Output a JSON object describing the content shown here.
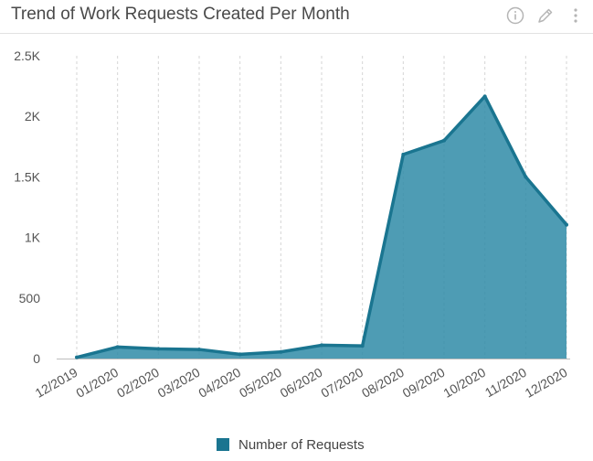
{
  "header": {
    "title": "Trend of Work Requests Created Per Month",
    "icons": [
      "info-icon",
      "pencil-icon",
      "more-vertical-icon"
    ]
  },
  "legend": {
    "label": "Number of Requests"
  },
  "colors": {
    "line": "#1a7590",
    "fill": "#2f8ba7",
    "grid": "#d6d6d6",
    "axis": "#bdbdbd"
  },
  "chart_data": {
    "type": "area",
    "title": "Trend of Work Requests Created Per Month",
    "xlabel": "",
    "ylabel": "",
    "ylim": [
      0,
      2500
    ],
    "yticks": [
      0,
      500,
      1000,
      1500,
      2000,
      2500
    ],
    "ytick_labels": [
      "0",
      "500",
      "1K",
      "1.5K",
      "2K",
      "2.5K"
    ],
    "categories": [
      "12/2019",
      "01/2020",
      "02/2020",
      "03/2020",
      "04/2020",
      "05/2020",
      "06/2020",
      "07/2020",
      "08/2020",
      "09/2020",
      "10/2020",
      "11/2020",
      "12/2020"
    ],
    "series": [
      {
        "name": "Number of Requests",
        "values": [
          10,
          95,
          80,
          75,
          35,
          55,
          110,
          105,
          1685,
          1800,
          2165,
          1500,
          1105
        ]
      }
    ],
    "grid": true,
    "grid_style": "dashed vertical",
    "legend_position": "bottom"
  }
}
